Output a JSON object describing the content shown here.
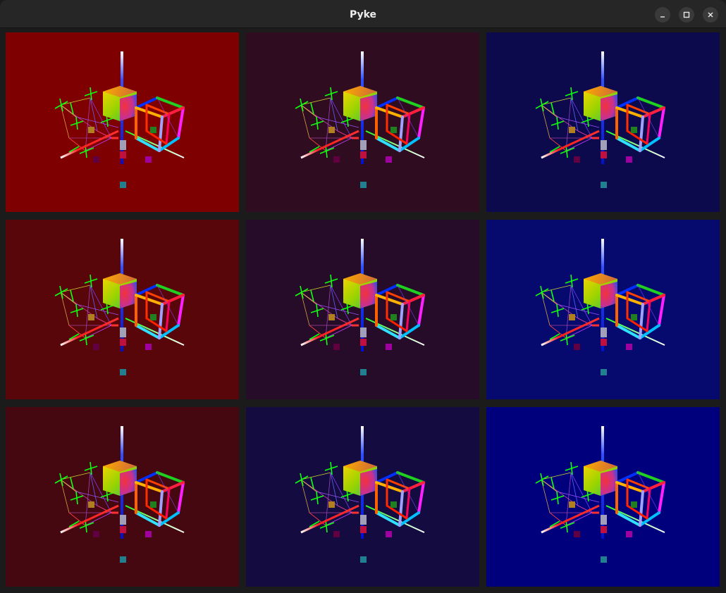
{
  "window": {
    "title": "Pyke"
  },
  "viewports": [
    {
      "bg": "#7e0000"
    },
    {
      "bg": "#300c20"
    },
    {
      "bg": "#0c0a4c"
    },
    {
      "bg": "#580609"
    },
    {
      "bg": "#260c28"
    },
    {
      "bg": "#060a6e"
    },
    {
      "bg": "#460810"
    },
    {
      "bg": "#140c40"
    },
    {
      "bg": "#00007c"
    }
  ]
}
